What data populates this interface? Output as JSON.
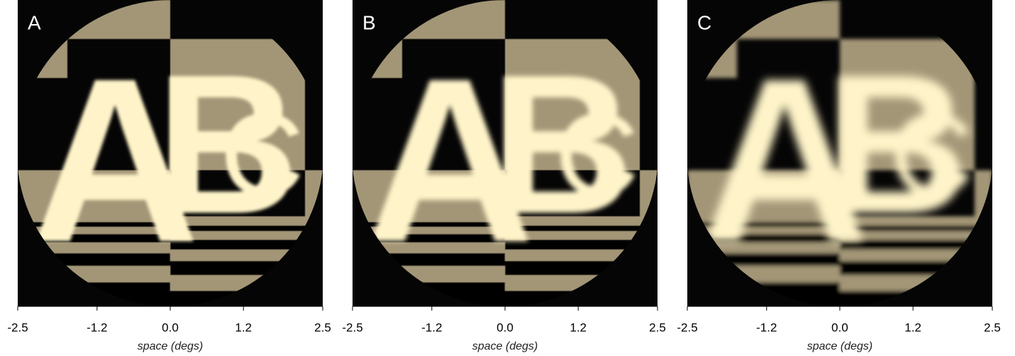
{
  "chart_data": [
    {
      "type": "image",
      "panel_label": "A",
      "stimulus": [
        "A",
        "B",
        "C"
      ],
      "xlabel": "space (degs)",
      "xlim": [
        -2.5,
        2.5
      ],
      "xticks": [
        -2.5,
        -1.2,
        {
          "value": 0,
          "label": "0.0"
        },
        1.2,
        2.5
      ]
    },
    {
      "type": "image",
      "panel_label": "B",
      "stimulus": [
        "A",
        "B",
        "C"
      ],
      "xlabel": "space (degs)",
      "xlim": [
        -2.5,
        2.5
      ],
      "xticks": [
        -2.5,
        -1.2,
        {
          "value": 0,
          "label": "0.0"
        },
        1.2,
        2.5
      ]
    },
    {
      "type": "image",
      "panel_label": "C",
      "stimulus": [
        "A",
        "B",
        "C"
      ],
      "xlabel": "space (degs)",
      "xlim": [
        -2.5,
        2.5
      ],
      "xticks": [
        -2.5,
        -1.2,
        {
          "value": 0,
          "label": "0.0"
        },
        1.2,
        2.5
      ]
    }
  ]
}
